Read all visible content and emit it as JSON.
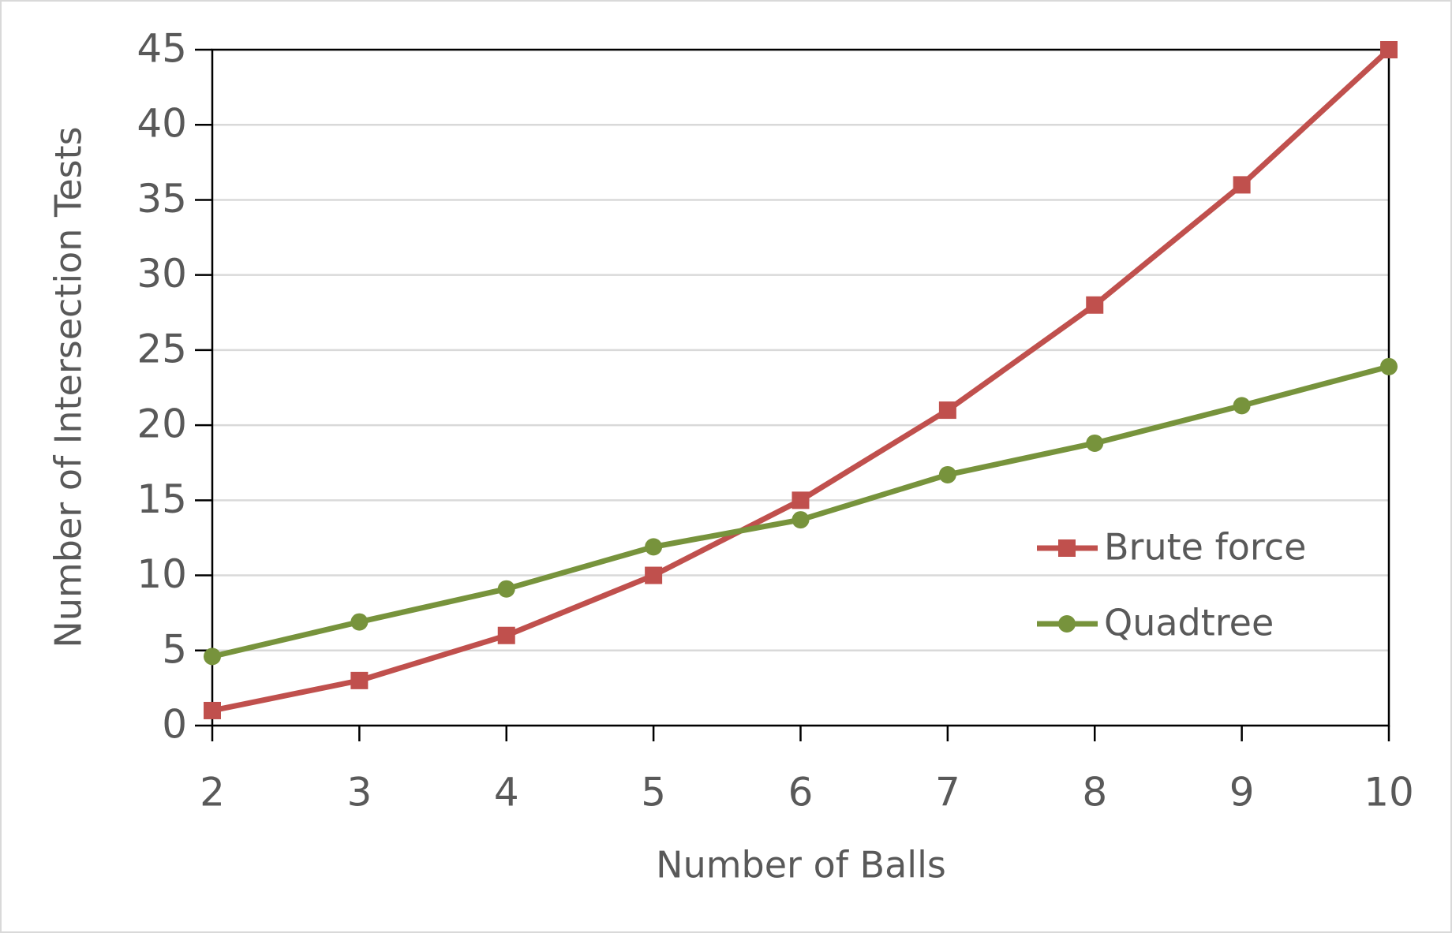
{
  "chart_data": {
    "type": "line",
    "x_label": "Number of Balls",
    "y_label": "Number of Intersection Tests",
    "x": [
      2,
      3,
      4,
      5,
      6,
      7,
      8,
      9,
      10
    ],
    "xlim": [
      2,
      10
    ],
    "xticks": [
      2,
      3,
      4,
      5,
      6,
      7,
      8,
      9,
      10
    ],
    "ylim": [
      0,
      45
    ],
    "yticks": [
      0,
      5,
      10,
      15,
      20,
      25,
      30,
      35,
      40,
      45
    ],
    "grid": true,
    "legend": "lower right",
    "series": [
      {
        "name": "Brute force",
        "color": "#c0504d",
        "marker": "square",
        "values": [
          1,
          3,
          6,
          10,
          15,
          21,
          28,
          36,
          45
        ]
      },
      {
        "name": "Quadtree",
        "color": "#77933c",
        "marker": "circle",
        "values": [
          4.6,
          6.9,
          9.1,
          11.9,
          13.7,
          16.7,
          18.8,
          21.3,
          23.9
        ]
      }
    ]
  }
}
